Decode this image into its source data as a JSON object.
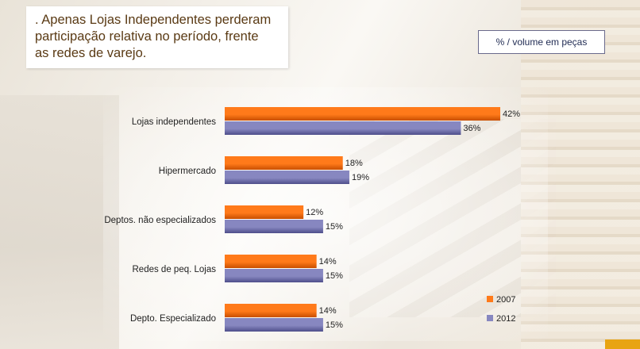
{
  "headline": ". Apenas Lojas Independentes perderam\n  participação relativa no período, frente\n  as redes de varejo.",
  "unit_label": "% / volume em peças",
  "colors": {
    "series_2007": "#ff7a1a",
    "series_2012": "#8787c0",
    "text": "#222222"
  },
  "chart_data": {
    "type": "bar",
    "orientation": "horizontal",
    "categories": [
      "Lojas independentes",
      "Hipermercado",
      "Deptos. não especializados",
      "Redes de peq. Lojas",
      "Depto. Especializado"
    ],
    "series": [
      {
        "name": "2007",
        "values": [
          42,
          18,
          12,
          14,
          14
        ]
      },
      {
        "name": "2012",
        "values": [
          36,
          19,
          15,
          15,
          15
        ]
      }
    ],
    "value_suffix": "%",
    "xlim": [
      0,
      42
    ],
    "legend_position": "bottom-right"
  }
}
